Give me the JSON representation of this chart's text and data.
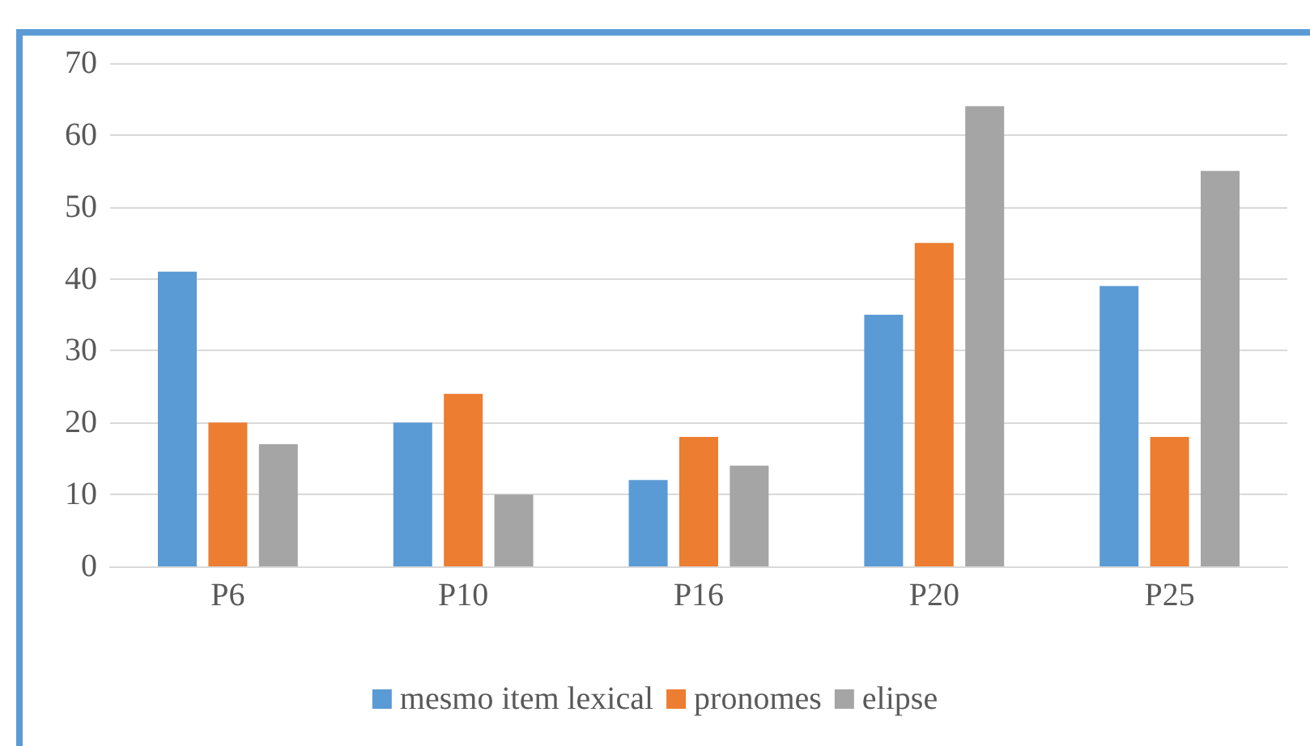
{
  "chart_data": {
    "type": "bar",
    "categories": [
      "P6",
      "P10",
      "P16",
      "P20",
      "P25"
    ],
    "series": [
      {
        "name": "mesmo item lexical",
        "color": "#5b9bd5",
        "values": [
          41,
          20,
          12,
          35,
          39
        ]
      },
      {
        "name": "pronomes",
        "color": "#ed7d31",
        "values": [
          20,
          24,
          18,
          45,
          18
        ]
      },
      {
        "name": "elipse",
        "color": "#a5a5a5",
        "values": [
          17,
          10,
          14,
          64,
          55
        ]
      }
    ],
    "ylim": [
      0,
      70
    ],
    "yticks": [
      0,
      10,
      20,
      30,
      40,
      50,
      60,
      70
    ],
    "grid": "y",
    "legend": "bottom"
  }
}
